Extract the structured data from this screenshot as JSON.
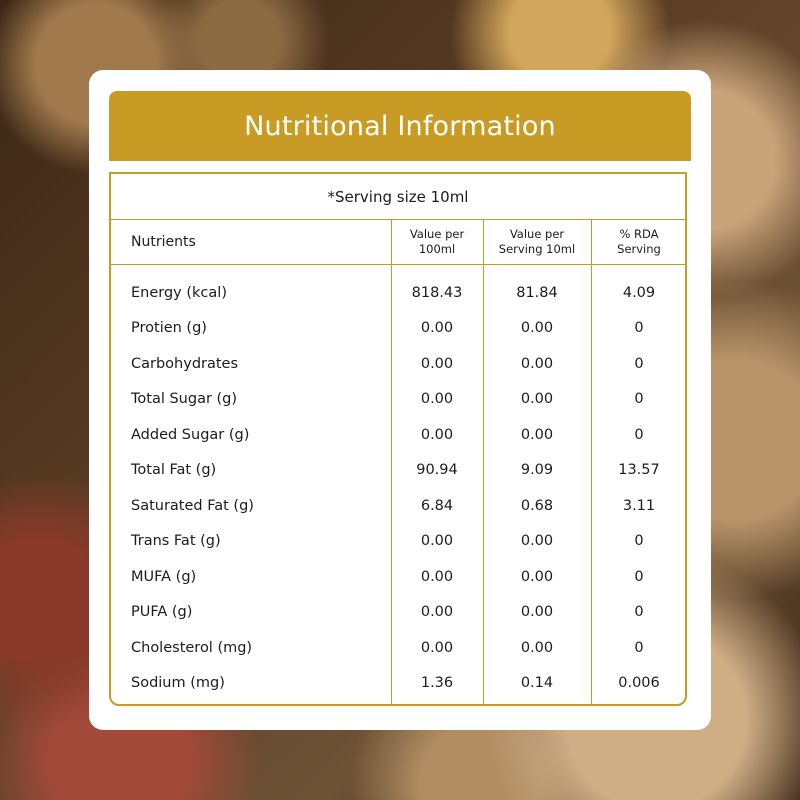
{
  "title": "Nutritional Information",
  "serving_note": "*Serving size 10ml",
  "headers": {
    "nutrients": "Nutrients",
    "per100": "Value per\n100ml",
    "perServing": "Value per\nServing 10ml",
    "rda": "% RDA\nServing"
  },
  "rows": [
    {
      "name": "Energy (kcal)",
      "per100": "818.43",
      "perServing": "81.84",
      "rda": "4.09"
    },
    {
      "name": "Protien (g)",
      "per100": "0.00",
      "perServing": "0.00",
      "rda": "0"
    },
    {
      "name": "Carbohydrates",
      "per100": "0.00",
      "perServing": "0.00",
      "rda": "0"
    },
    {
      "name": "Total Sugar (g)",
      "per100": "0.00",
      "perServing": "0.00",
      "rda": "0"
    },
    {
      "name": "Added Sugar (g)",
      "per100": "0.00",
      "perServing": "0.00",
      "rda": "0"
    },
    {
      "name": "Total Fat (g)",
      "per100": "90.94",
      "perServing": "9.09",
      "rda": "13.57"
    },
    {
      "name": "Saturated Fat (g)",
      "per100": "6.84",
      "perServing": "0.68",
      "rda": "3.11"
    },
    {
      "name": "Trans Fat (g)",
      "per100": "0.00",
      "perServing": "0.00",
      "rda": "0"
    },
    {
      "name": "MUFA (g)",
      "per100": "0.00",
      "perServing": "0.00",
      "rda": "0"
    },
    {
      "name": "PUFA (g)",
      "per100": "0.00",
      "perServing": "0.00",
      "rda": "0"
    },
    {
      "name": "Cholesterol (mg)",
      "per100": "0.00",
      "perServing": "0.00",
      "rda": "0"
    },
    {
      "name": "Sodium (mg)",
      "per100": "1.36",
      "perServing": "0.14",
      "rda": "0.006"
    }
  ],
  "colors": {
    "accent": "#c89b24",
    "card": "#ffffff",
    "text": "#1c1c1c"
  }
}
